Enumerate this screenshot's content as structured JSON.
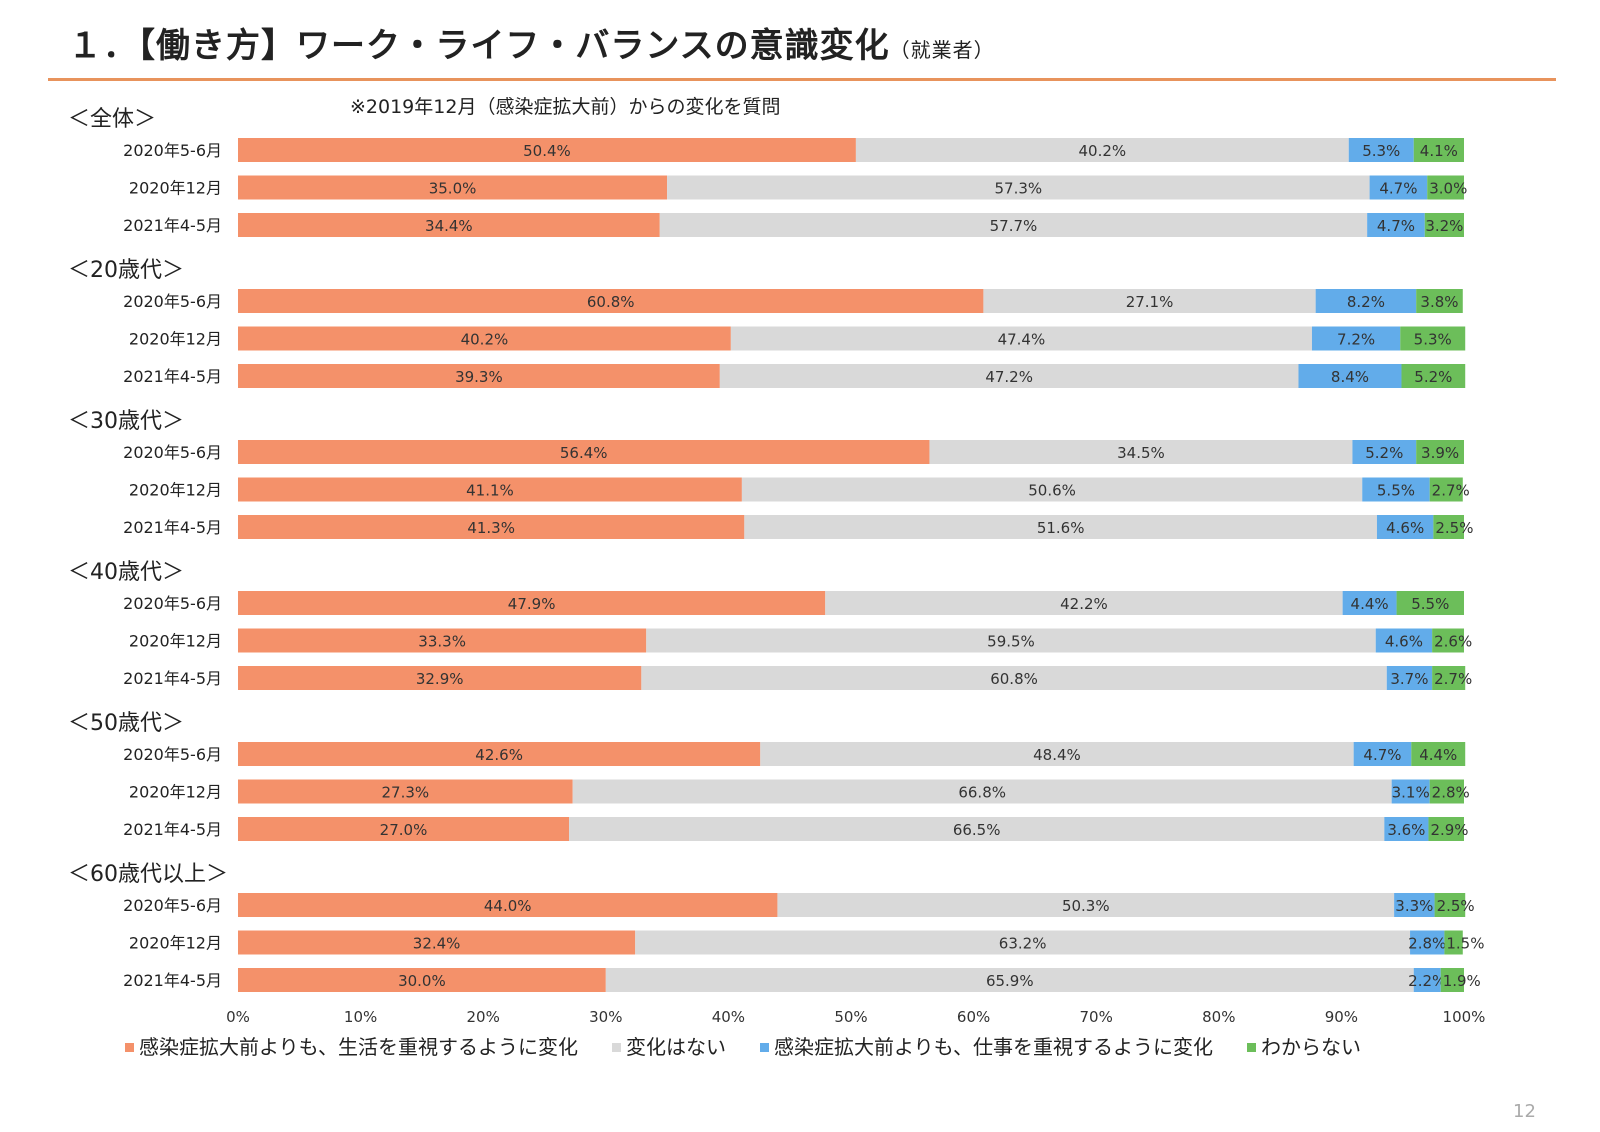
{
  "title": {
    "main": "１．【働き方】ワーク・ライフ・バランスの意識変化",
    "sub": "（就業者）"
  },
  "note": "※2019年12月（感染症拡大前）からの変化を質問",
  "page_number": "12",
  "colors": {
    "life": "#f4916a",
    "nochange": "#d9d9d9",
    "work": "#62acea",
    "unknown": "#6cbe5a"
  },
  "chart_data": {
    "type": "bar",
    "orientation": "horizontal",
    "stacked": true,
    "normalized": true,
    "xlim": [
      0,
      100
    ],
    "xticks": [
      "0%",
      "10%",
      "20%",
      "30%",
      "40%",
      "50%",
      "60%",
      "70%",
      "80%",
      "90%",
      "100%"
    ],
    "legend_position": "bottom",
    "series": [
      {
        "name": "感染症拡大前よりも、生活を重視するように変化",
        "color_key": "life"
      },
      {
        "name": "変化はない",
        "color_key": "nochange"
      },
      {
        "name": "感染症拡大前よりも、仕事を重視するように変化",
        "color_key": "work"
      },
      {
        "name": "わからない",
        "color_key": "unknown"
      }
    ],
    "groups": [
      {
        "label": "＜全体＞",
        "rows": [
          {
            "period": "2020年5-6月",
            "values": [
              50.4,
              40.2,
              5.3,
              4.1
            ]
          },
          {
            "period": "2020年12月",
            "values": [
              35.0,
              57.3,
              4.7,
              3.0
            ]
          },
          {
            "period": "2021年4-5月",
            "values": [
              34.4,
              57.7,
              4.7,
              3.2
            ]
          }
        ]
      },
      {
        "label": "＜20歳代＞",
        "rows": [
          {
            "period": "2020年5-6月",
            "values": [
              60.8,
              27.1,
              8.2,
              3.8
            ]
          },
          {
            "period": "2020年12月",
            "values": [
              40.2,
              47.4,
              7.2,
              5.3
            ]
          },
          {
            "period": "2021年4-5月",
            "values": [
              39.3,
              47.2,
              8.4,
              5.2
            ]
          }
        ]
      },
      {
        "label": "＜30歳代＞",
        "rows": [
          {
            "period": "2020年5-6月",
            "values": [
              56.4,
              34.5,
              5.2,
              3.9
            ]
          },
          {
            "period": "2020年12月",
            "values": [
              41.1,
              50.6,
              5.5,
              2.7
            ]
          },
          {
            "period": "2021年4-5月",
            "values": [
              41.3,
              51.6,
              4.6,
              2.5
            ]
          }
        ]
      },
      {
        "label": "＜40歳代＞",
        "rows": [
          {
            "period": "2020年5-6月",
            "values": [
              47.9,
              42.2,
              4.4,
              5.5
            ]
          },
          {
            "period": "2020年12月",
            "values": [
              33.3,
              59.5,
              4.6,
              2.6
            ]
          },
          {
            "period": "2021年4-5月",
            "values": [
              32.9,
              60.8,
              3.7,
              2.7
            ]
          }
        ]
      },
      {
        "label": "＜50歳代＞",
        "rows": [
          {
            "period": "2020年5-6月",
            "values": [
              42.6,
              48.4,
              4.7,
              4.4
            ]
          },
          {
            "period": "2020年12月",
            "values": [
              27.3,
              66.8,
              3.1,
              2.8
            ]
          },
          {
            "period": "2021年4-5月",
            "values": [
              27.0,
              66.5,
              3.6,
              2.9
            ]
          }
        ]
      },
      {
        "label": "＜60歳代以上＞",
        "rows": [
          {
            "period": "2020年5-6月",
            "values": [
              44.0,
              50.3,
              3.3,
              2.5
            ]
          },
          {
            "period": "2020年12月",
            "values": [
              32.4,
              63.2,
              2.8,
              1.5
            ]
          },
          {
            "period": "2021年4-5月",
            "values": [
              30.0,
              65.9,
              2.2,
              1.9
            ]
          }
        ]
      }
    ]
  }
}
